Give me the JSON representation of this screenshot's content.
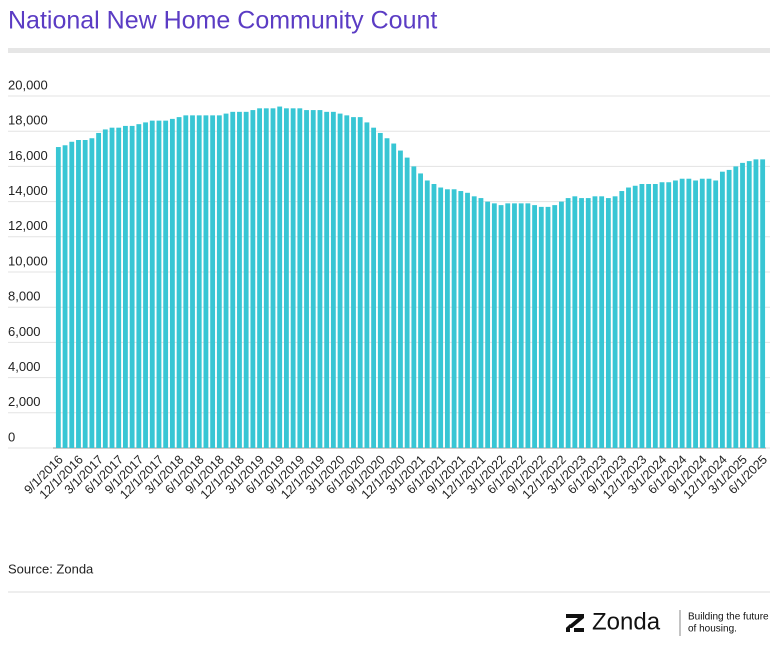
{
  "chart_data": {
    "type": "bar",
    "title": "National New Home Community Count",
    "categories": [
      "9/1/2016",
      null,
      null,
      "12/1/2016",
      null,
      null,
      "3/1/2017",
      null,
      null,
      "6/1/2017",
      null,
      null,
      "9/1/2017",
      null,
      null,
      "12/1/2017",
      null,
      null,
      "3/1/2018",
      null,
      null,
      "6/1/2018",
      null,
      null,
      "9/1/2018",
      null,
      null,
      "12/1/2018",
      null,
      null,
      "3/1/2019",
      null,
      null,
      "6/1/2019",
      null,
      null,
      "9/1/2019",
      null,
      null,
      "12/1/2019",
      null,
      null,
      "3/1/2020",
      null,
      null,
      "6/1/2020",
      null,
      null,
      "9/1/2020",
      null,
      null,
      "12/1/2020",
      null,
      null,
      "3/1/2021",
      null,
      null,
      "6/1/2021",
      null,
      null,
      "9/1/2021",
      null,
      null,
      "12/1/2021",
      null,
      null,
      "3/1/2022",
      null,
      null,
      "6/1/2022",
      null,
      null,
      "9/1/2022",
      null,
      null,
      "12/1/2022",
      null,
      null,
      "3/1/2023",
      null,
      null,
      "6/1/2023",
      null,
      null,
      "9/1/2023",
      null,
      null,
      "12/1/2023",
      null,
      null,
      "3/1/2024",
      null,
      null,
      "6/1/2024",
      null,
      null,
      "9/1/2024",
      null,
      null,
      "12/1/2024",
      null,
      null,
      "3/1/2025",
      null,
      null,
      "6/1/2025"
    ],
    "values": [
      17100,
      17200,
      17400,
      17500,
      17500,
      17600,
      17900,
      18100,
      18200,
      18200,
      18300,
      18300,
      18400,
      18500,
      18600,
      18600,
      18600,
      18700,
      18800,
      18900,
      18900,
      18900,
      18900,
      18900,
      18900,
      19000,
      19100,
      19100,
      19100,
      19200,
      19300,
      19300,
      19300,
      19400,
      19300,
      19300,
      19300,
      19200,
      19200,
      19200,
      19100,
      19100,
      19000,
      18900,
      18800,
      18800,
      18500,
      18200,
      17900,
      17600,
      17300,
      16900,
      16500,
      16000,
      15600,
      15200,
      15000,
      14800,
      14700,
      14700,
      14600,
      14500,
      14300,
      14200,
      14000,
      13900,
      13800,
      13900,
      13900,
      13900,
      13900,
      13800,
      13700,
      13700,
      13800,
      14000,
      14200,
      14300,
      14200,
      14200,
      14300,
      14300,
      14200,
      14300,
      14600,
      14800,
      14900,
      15000,
      15000,
      15000,
      15100,
      15100,
      15200,
      15300,
      15300,
      15200,
      15300,
      15300,
      15200,
      15700,
      15800,
      16000,
      16200,
      16300,
      16400,
      16400
    ],
    "color": "#38c6d4",
    "ylim": [
      0,
      20000
    ],
    "yticks": [
      0,
      {
        "value": 2000,
        "label": "2,000"
      },
      {
        "value": 4000,
        "label": "4,000"
      },
      {
        "value": 6000,
        "label": "6,000"
      },
      {
        "value": 8000,
        "label": "8,000"
      },
      {
        "value": 10000,
        "label": "10,000"
      },
      {
        "value": 12000,
        "label": "12,000"
      },
      {
        "value": 14000,
        "label": "14,000"
      },
      {
        "value": 16000,
        "label": "16,000"
      },
      {
        "value": 18000,
        "label": "18,000"
      },
      {
        "value": 20000,
        "label": "20,000"
      }
    ],
    "grid": true,
    "source": "Source: Zonda"
  },
  "footer": {
    "brand": "Zonda",
    "tagline": [
      "Building the future",
      "of housing."
    ]
  }
}
